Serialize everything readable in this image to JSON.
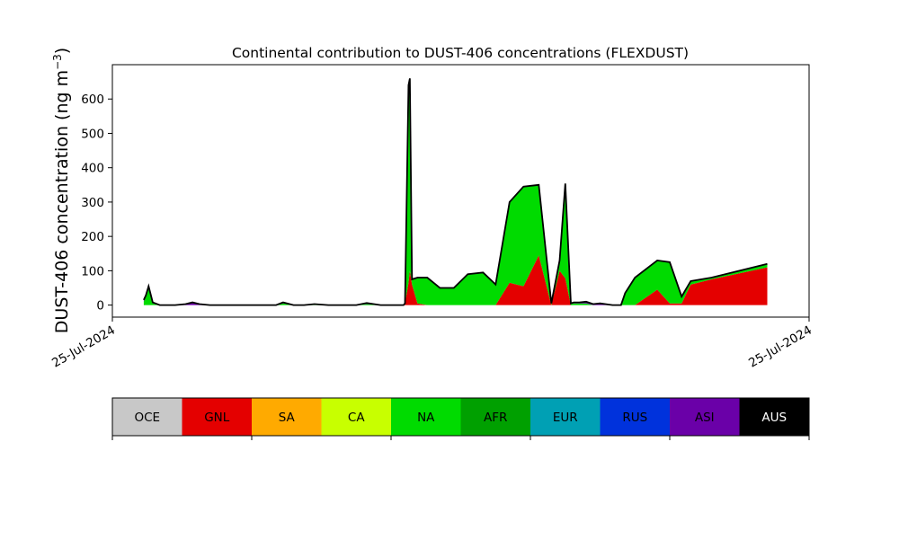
{
  "chart_data": {
    "type": "area",
    "title": "Continental contribution to DUST-406 concentrations (FLEXDUST)",
    "ylabel": "DUST-406 concentration (ng m",
    "ylabel_sup": "−3",
    "ylabel_close": ")",
    "xlabel": "",
    "x_tick_labels": [
      "25-Jul-2024",
      "25-Jul-2024"
    ],
    "y_ticks": [
      0,
      100,
      200,
      300,
      400,
      500,
      600
    ],
    "ylim": [
      -35,
      700
    ],
    "xlim": [
      0,
      1
    ],
    "stacked": true,
    "outline_color": "#000000",
    "x": [
      0.045,
      0.048,
      0.052,
      0.058,
      0.068,
      0.09,
      0.105,
      0.115,
      0.125,
      0.14,
      0.18,
      0.235,
      0.245,
      0.26,
      0.275,
      0.29,
      0.31,
      0.325,
      0.35,
      0.365,
      0.385,
      0.405,
      0.418,
      0.42,
      0.425,
      0.427,
      0.43,
      0.438,
      0.452,
      0.47,
      0.49,
      0.51,
      0.532,
      0.55,
      0.57,
      0.59,
      0.612,
      0.63,
      0.642,
      0.65,
      0.658,
      0.662,
      0.67,
      0.68,
      0.69,
      0.7,
      0.718,
      0.73,
      0.736,
      0.75,
      0.782,
      0.8,
      0.817,
      0.83,
      0.86,
      0.94
    ],
    "series": [
      {
        "name": "GNL",
        "color": "#e40000",
        "values": [
          0,
          0,
          0,
          0,
          0,
          0,
          0,
          0,
          0,
          0,
          0,
          0,
          0,
          0,
          0,
          0,
          0,
          0,
          0,
          0,
          0,
          0,
          0,
          5,
          65,
          100,
          60,
          5,
          0,
          0,
          0,
          0,
          0,
          0,
          65,
          55,
          145,
          0,
          100,
          78,
          0,
          0,
          0,
          0,
          0,
          0,
          0,
          0,
          0,
          0,
          45,
          5,
          5,
          60,
          75,
          110
        ]
      },
      {
        "name": "NA",
        "color": "#00db00",
        "values": [
          10,
          25,
          52,
          5,
          0,
          0,
          0,
          0,
          0,
          0,
          0,
          0,
          5,
          0,
          0,
          3,
          0,
          0,
          0,
          3,
          0,
          0,
          0,
          0,
          575,
          560,
          15,
          75,
          80,
          50,
          50,
          90,
          95,
          60,
          235,
          290,
          205,
          5,
          30,
          276,
          5,
          5,
          5,
          5,
          0,
          0,
          0,
          0,
          35,
          80,
          85,
          120,
          20,
          10,
          5,
          10
        ]
      },
      {
        "name": "ASI",
        "color": "#6a00a8",
        "values": [
          5,
          3,
          3,
          3,
          0,
          0,
          3,
          8,
          3,
          0,
          0,
          0,
          3,
          0,
          0,
          0,
          0,
          0,
          0,
          3,
          0,
          0,
          0,
          0,
          0,
          0,
          0,
          0,
          0,
          0,
          0,
          0,
          0,
          0,
          0,
          0,
          0,
          0,
          0,
          0,
          0,
          3,
          3,
          5,
          3,
          5,
          0,
          0,
          0,
          0,
          0,
          0,
          0,
          0,
          0,
          0
        ]
      }
    ],
    "legend": {
      "placement": "bottom",
      "entries": [
        {
          "label": "OCE",
          "color": "#c8c8c8",
          "text_color": "#000000"
        },
        {
          "label": "GNL",
          "color": "#e40000",
          "text_color": "#000000"
        },
        {
          "label": "SA",
          "color": "#ffaa00",
          "text_color": "#000000"
        },
        {
          "label": "CA",
          "color": "#c8ff00",
          "text_color": "#000000"
        },
        {
          "label": "NA",
          "color": "#00db00",
          "text_color": "#000000"
        },
        {
          "label": "AFR",
          "color": "#00a000",
          "text_color": "#000000"
        },
        {
          "label": "EUR",
          "color": "#00a0b4",
          "text_color": "#000000"
        },
        {
          "label": "RUS",
          "color": "#0032dc",
          "text_color": "#000000"
        },
        {
          "label": "ASI",
          "color": "#6a00a8",
          "text_color": "#000000"
        },
        {
          "label": "AUS",
          "color": "#000000",
          "text_color": "#ffffff"
        }
      ]
    },
    "grid": false
  }
}
